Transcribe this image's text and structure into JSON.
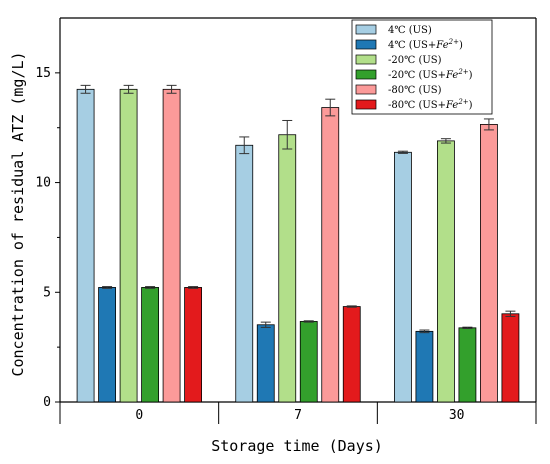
{
  "chart_data": {
    "type": "bar",
    "xlabel": "Storage time (Days)",
    "ylabel": "Concentration of residual ATZ (mg/L)",
    "categories": [
      "0",
      "7",
      "30"
    ],
    "ylim": [
      0,
      17.5
    ],
    "yticks": [
      0,
      5,
      10,
      15
    ],
    "legend_position": "top-right",
    "series": [
      {
        "name": "4℃ (US)",
        "name_main": "4℃ (US)",
        "name_fe": "",
        "color": "#a6cee3",
        "values": [
          14.25,
          11.7,
          11.38
        ],
        "errors": [
          0.18,
          0.38,
          0.05
        ]
      },
      {
        "name": "4℃ (US+Fe2+)",
        "name_main": "4℃ (US+",
        "name_fe": "Fe",
        "color": "#1f78b4",
        "values": [
          5.22,
          3.52,
          3.22
        ],
        "errors": [
          0.04,
          0.12,
          0.06
        ]
      },
      {
        "name": "-20℃ (US)",
        "name_main": "-20℃ (US)",
        "name_fe": "",
        "color": "#b2df8a",
        "values": [
          14.25,
          12.18,
          11.9
        ],
        "errors": [
          0.18,
          0.65,
          0.1
        ]
      },
      {
        "name": "-20℃ (US+Fe2+)",
        "name_main": "-20℃ (US+",
        "name_fe": "Fe",
        "color": "#33a02c",
        "values": [
          5.22,
          3.67,
          3.38
        ],
        "errors": [
          0.04,
          0.03,
          0.03
        ]
      },
      {
        "name": "-80℃ (US)",
        "name_main": "-80℃ (US)",
        "name_fe": "",
        "color": "#fb9a99",
        "values": [
          14.25,
          13.42,
          12.65
        ],
        "errors": [
          0.18,
          0.38,
          0.25
        ]
      },
      {
        "name": "-80℃ (US+Fe2+)",
        "name_main": "-80℃ (US+",
        "name_fe": "Fe",
        "color": "#e31a1c",
        "values": [
          5.22,
          4.35,
          4.02
        ],
        "errors": [
          0.04,
          0.03,
          0.12
        ]
      }
    ],
    "legend_sup": "2+",
    "legend_close": ")"
  }
}
